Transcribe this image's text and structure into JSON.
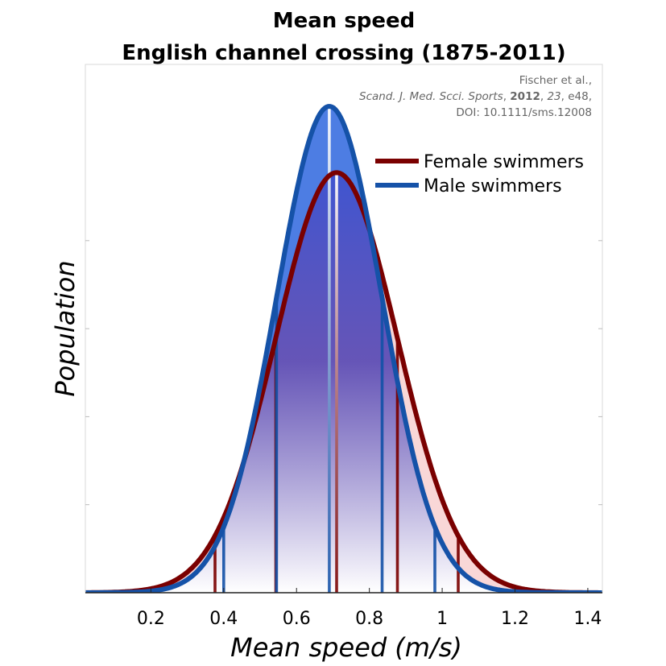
{
  "chart_data": {
    "type": "area",
    "title": "Mean speed",
    "subtitle": "English channel crossing (1875-2011)",
    "xlabel": "Mean speed (m/s)",
    "ylabel": "Population",
    "xlim": [
      0.02,
      1.44
    ],
    "ylim": [
      0,
      1.0
    ],
    "xticks": [
      0.2,
      0.4,
      0.6,
      0.8,
      1.0,
      1.2,
      1.4
    ],
    "xtick_labels": [
      "0.2",
      "0.4",
      "0.6",
      "0.8",
      "1",
      "1.2",
      "1.4"
    ],
    "yticks": [
      0.2,
      0.4,
      0.6,
      0.8
    ],
    "grid": false,
    "legend_position": "top-right",
    "series": [
      {
        "name": "Female swimmers",
        "color": "#7a0000",
        "fill": "#f7c9c9",
        "mean": 0.71,
        "sd": 0.167,
        "peak": 0.95
      },
      {
        "name": "Male swimmers",
        "color": "#1552a8",
        "fill": "#3a6fe0",
        "mean": 0.69,
        "sd": 0.145,
        "peak": 1.1
      }
    ],
    "annotation": {
      "line1": "Fischer et al.,",
      "journal": "Scand. J. Med. Scci. Sports",
      "sep1": ", ",
      "year": "2012",
      "sep2": ", ",
      "volume": "23",
      "pages": ", e48,",
      "doi": "DOI: 10.1111/sms.12008"
    }
  }
}
